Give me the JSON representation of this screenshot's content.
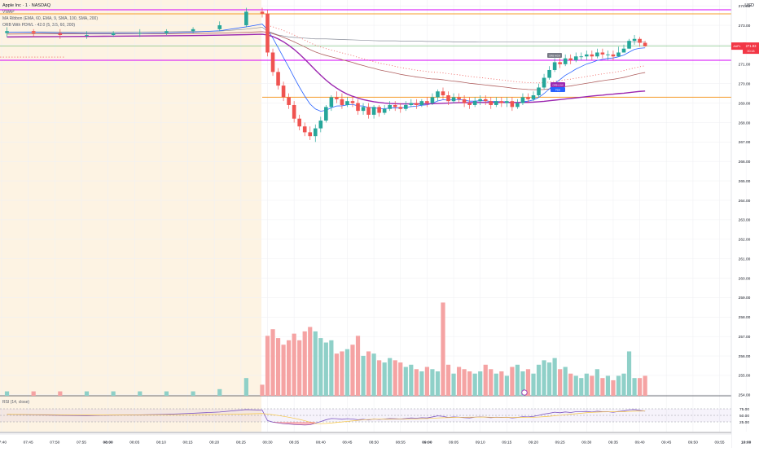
{
  "legend": {
    "symbol_line": "Apple Inc · 1 · NASDAQ",
    "vwap_line": "VWAP",
    "ribbon_line": "MA Ribbon (EMA, 60, EMA, 9, SMA, 100, SMA, 200)",
    "orb_line": "ORB With PDH/L · 42.0 (5, 3.5, 60, 200)"
  },
  "rsi": {
    "legend": "RSI (14, close)",
    "levels": [
      75,
      50,
      25
    ],
    "level_labels": [
      "75.00",
      "50.00",
      "25.00"
    ]
  },
  "axis": {
    "currency": "USD",
    "price_ticks": [
      {
        "v": 274,
        "t": "274.00"
      },
      {
        "v": 273,
        "t": "273.00"
      },
      {
        "v": 272,
        "t": "272.00"
      },
      {
        "v": 271,
        "t": "271.00"
      },
      {
        "v": 270,
        "t": "270.00"
      },
      {
        "v": 269,
        "t": "269.00"
      },
      {
        "v": 268,
        "t": "268.00"
      },
      {
        "v": 267,
        "t": "267.00"
      },
      {
        "v": 266,
        "t": "266.00"
      },
      {
        "v": 265,
        "t": "265.00"
      },
      {
        "v": 264,
        "t": "264.00"
      },
      {
        "v": 263,
        "t": "263.00"
      },
      {
        "v": 262,
        "t": "262.00"
      },
      {
        "v": 261,
        "t": "261.00"
      },
      {
        "v": 260,
        "t": "260.00"
      },
      {
        "v": 259,
        "t": "259.00"
      },
      {
        "v": 258,
        "t": "258.00"
      },
      {
        "v": 257,
        "t": "257.00"
      },
      {
        "v": 256,
        "t": "256.00"
      },
      {
        "v": 255,
        "t": "255.00"
      },
      {
        "v": 254,
        "t": "254.00"
      }
    ],
    "time_ticks": [
      "07:40",
      "07:45",
      "07:50",
      "07:55",
      "08:00",
      "08:05",
      "08:10",
      "08:15",
      "08:20",
      "08:25",
      "08:30",
      "08:35",
      "08:40",
      "08:45",
      "08:50",
      "08:55",
      "09:00",
      "09:05",
      "09:10",
      "09:15",
      "09:20",
      "09:25",
      "09:30",
      "09:35",
      "09:40",
      "09:45",
      "09:50",
      "09:55",
      "10:00",
      "10:05",
      "10:10",
      "10:15",
      "10:20",
      "10:25",
      "10:30"
    ],
    "bold_times": [
      "08:00",
      "09:00",
      "10:00"
    ],
    "price_badge": {
      "symbol": "AAPL",
      "price": "271.93",
      "countdown": "00:18",
      "color": "#f23645"
    }
  },
  "tags": [
    {
      "text": "ORB HIGH",
      "color": "#787b86"
    },
    {
      "text": "ORB LOW",
      "color": "#9c27b0"
    },
    {
      "text": "PDH",
      "color": "#2962ff"
    }
  ],
  "colors": {
    "up": "#26a69a",
    "down": "#ef5350",
    "vol_up": "#8fd0c8",
    "vol_down": "#f5a3a3",
    "premarket_bg": "#fdf3e3",
    "orange_line": "#f59c2b",
    "magenta_line": "#d500f9",
    "vwap": "#8a8e9a",
    "ema_fast": "#2962ff",
    "ema_slow": "#b06060",
    "sma": "#9c27b0"
  },
  "chart_data": {
    "type": "candlestick",
    "x_unit": "time",
    "y_unit": "USD",
    "candles": {
      "x": [
        "07:41",
        "07:46",
        "07:51",
        "07:56",
        "08:01",
        "08:06",
        "08:11",
        "08:16",
        "08:21",
        "08:26",
        "08:29",
        "08:30",
        "08:31",
        "08:32",
        "08:33",
        "08:34",
        "08:35",
        "08:36",
        "08:37",
        "08:38",
        "08:39",
        "08:40",
        "08:41",
        "08:42",
        "08:43",
        "08:44",
        "08:45",
        "08:46",
        "08:47",
        "08:48",
        "08:49",
        "08:50",
        "08:51",
        "08:52",
        "08:53",
        "08:54",
        "08:55",
        "08:56",
        "08:57",
        "08:58",
        "08:59",
        "09:00",
        "09:01",
        "09:02",
        "09:03",
        "09:04",
        "09:05",
        "09:06",
        "09:07",
        "09:08",
        "09:09",
        "09:10",
        "09:11",
        "09:12",
        "09:13",
        "09:14",
        "09:15",
        "09:16",
        "09:17",
        "09:18",
        "09:19",
        "09:20",
        "09:21",
        "09:22",
        "09:23",
        "09:24",
        "09:25",
        "09:26",
        "09:27",
        "09:28",
        "09:29",
        "09:30",
        "09:31",
        "09:32",
        "09:33",
        "09:34",
        "09:35",
        "09:36",
        "09:37",
        "09:38",
        "09:39",
        "09:40",
        "09:41"
      ],
      "open": [
        272.6,
        272.7,
        272.6,
        272.5,
        272.5,
        272.6,
        272.6,
        272.7,
        272.8,
        273.0,
        273.7,
        273.6,
        271.6,
        270.6,
        269.9,
        269.3,
        268.9,
        268.2,
        267.8,
        267.5,
        267.3,
        267.7,
        268.1,
        268.8,
        269.3,
        269.2,
        268.9,
        269.1,
        269.0,
        268.6,
        268.8,
        268.4,
        268.8,
        268.5,
        268.7,
        268.9,
        268.8,
        268.7,
        268.9,
        269.0,
        268.9,
        269.1,
        269.0,
        269.3,
        269.6,
        269.4,
        269.1,
        269.3,
        269.2,
        269.0,
        268.9,
        269.1,
        269.2,
        269.1,
        268.9,
        269.1,
        269.0,
        269.1,
        268.8,
        269.0,
        269.3,
        269.2,
        269.4,
        269.8,
        270.3,
        270.7,
        271.1,
        271.0,
        271.3,
        271.2,
        271.4,
        271.4,
        271.5,
        271.4,
        271.6,
        271.5,
        271.5,
        271.4,
        271.6,
        271.8,
        272.2,
        272.3,
        272.1
      ],
      "high": [
        272.9,
        272.8,
        272.8,
        272.7,
        272.7,
        272.8,
        272.8,
        272.9,
        273.2,
        273.9,
        273.9,
        273.8,
        271.8,
        270.8,
        270.1,
        269.5,
        269.1,
        268.4,
        268.0,
        267.8,
        267.9,
        268.3,
        268.9,
        269.4,
        269.6,
        269.5,
        269.3,
        269.3,
        269.2,
        269.0,
        269.0,
        268.9,
        268.9,
        268.9,
        269.1,
        269.1,
        269.0,
        269.1,
        269.2,
        269.2,
        269.2,
        269.3,
        269.5,
        269.7,
        269.8,
        269.6,
        269.5,
        269.5,
        269.4,
        269.3,
        269.3,
        269.4,
        269.4,
        269.3,
        269.3,
        269.3,
        269.3,
        269.3,
        269.2,
        269.5,
        269.5,
        269.6,
        270.0,
        270.5,
        270.9,
        271.3,
        271.3,
        271.5,
        271.5,
        271.6,
        271.6,
        271.7,
        271.7,
        271.8,
        271.8,
        271.7,
        271.7,
        271.9,
        272.0,
        272.3,
        272.5,
        272.4,
        272.2
      ],
      "low": [
        272.4,
        272.4,
        272.3,
        272.3,
        272.4,
        272.4,
        272.5,
        272.6,
        272.7,
        272.9,
        273.4,
        271.4,
        270.4,
        269.7,
        269.1,
        268.7,
        268.0,
        267.6,
        267.3,
        267.1,
        267.0,
        267.5,
        268.0,
        268.6,
        269.0,
        268.7,
        268.8,
        268.8,
        268.4,
        268.4,
        268.2,
        268.2,
        268.3,
        268.4,
        268.6,
        268.6,
        268.5,
        268.6,
        268.8,
        268.7,
        268.8,
        268.8,
        268.9,
        269.1,
        269.2,
        268.9,
        269.0,
        269.0,
        268.8,
        268.7,
        268.8,
        268.9,
        268.9,
        268.7,
        268.8,
        268.8,
        268.8,
        268.6,
        268.7,
        268.9,
        269.0,
        269.1,
        269.3,
        269.7,
        270.2,
        270.6,
        270.8,
        270.9,
        271.0,
        271.1,
        271.2,
        271.2,
        271.2,
        271.3,
        271.3,
        271.2,
        271.2,
        271.4,
        271.6,
        271.8,
        272.0,
        271.9,
        271.9
      ],
      "close": [
        272.7,
        272.6,
        272.5,
        272.5,
        272.6,
        272.6,
        272.7,
        272.8,
        273.0,
        273.7,
        273.6,
        271.6,
        270.6,
        269.9,
        269.3,
        268.9,
        268.2,
        267.8,
        267.5,
        267.3,
        267.7,
        268.1,
        268.8,
        269.3,
        269.2,
        268.9,
        269.1,
        269.0,
        268.6,
        268.8,
        268.4,
        268.8,
        268.5,
        268.7,
        268.9,
        268.8,
        268.7,
        268.9,
        269.0,
        268.9,
        269.1,
        269.0,
        269.3,
        269.6,
        269.4,
        269.1,
        269.3,
        269.2,
        269.0,
        268.9,
        269.1,
        269.2,
        269.1,
        268.9,
        269.1,
        269.0,
        269.1,
        268.8,
        269.0,
        269.3,
        269.2,
        269.4,
        269.8,
        270.3,
        270.7,
        271.1,
        271.0,
        271.3,
        271.2,
        271.4,
        271.4,
        271.5,
        271.4,
        271.6,
        271.5,
        271.5,
        271.4,
        271.6,
        271.8,
        272.2,
        272.3,
        272.1,
        271.93
      ]
    },
    "volume": [
      0.2,
      0.2,
      0.2,
      0.2,
      0.2,
      0.2,
      0.2,
      0.2,
      0.3,
      0.8,
      0.5,
      2.7,
      3.0,
      2.6,
      2.3,
      2.5,
      2.8,
      2.5,
      2.9,
      3.1,
      2.9,
      2.6,
      2.4,
      2.5,
      1.9,
      2.0,
      2.1,
      2.3,
      2.7,
      1.8,
      2.0,
      1.9,
      1.6,
      1.5,
      1.7,
      1.6,
      1.5,
      1.3,
      1.4,
      1.2,
      1.1,
      1.3,
      1.2,
      1.1,
      4.2,
      1.4,
      1.0,
      1.3,
      1.2,
      1.1,
      1.0,
      1.1,
      1.4,
      1.2,
      1.0,
      1.1,
      0.9,
      1.3,
      1.4,
      1.1,
      1.2,
      1.0,
      1.4,
      1.6,
      1.5,
      1.7,
      1.2,
      1.3,
      1.0,
      0.9,
      0.8,
      1.0,
      0.9,
      1.2,
      0.8,
      0.9,
      0.7,
      0.9,
      1.0,
      2.0,
      0.8,
      0.8,
      0.9
    ],
    "rsi": [
      54,
      52,
      50,
      49,
      51,
      52,
      54,
      58,
      63,
      72,
      70,
      30,
      24,
      21,
      18,
      17,
      15,
      14,
      13,
      14,
      20,
      26,
      33,
      38,
      37,
      35,
      37,
      36,
      33,
      35,
      32,
      36,
      34,
      36,
      38,
      37,
      36,
      38,
      40,
      39,
      41,
      40,
      44,
      48,
      46,
      42,
      44,
      43,
      41,
      40,
      43,
      44,
      43,
      41,
      43,
      42,
      43,
      40,
      42,
      45,
      44,
      46,
      50,
      55,
      58,
      62,
      60,
      63,
      61,
      64,
      64,
      65,
      63,
      66,
      64,
      64,
      62,
      65,
      67,
      71,
      72,
      69,
      66
    ],
    "vwap": [
      272.65,
      272.66,
      272.66,
      272.66,
      272.66,
      272.66,
      272.67,
      272.68,
      272.7,
      272.8,
      272.9,
      272.7,
      272.6,
      272.5,
      272.45,
      272.4,
      272.38,
      272.36,
      272.34,
      272.32,
      272.3,
      272.3,
      272.3,
      272.29,
      272.28,
      272.27,
      272.26,
      272.25,
      272.24,
      272.23,
      272.22,
      272.21,
      272.2,
      272.2,
      272.2,
      272.2,
      272.19,
      272.19,
      272.18,
      272.18,
      272.18,
      272.17,
      272.17,
      272.17,
      272.16,
      272.16,
      272.15,
      272.15,
      272.15,
      272.15,
      272.15,
      272.14,
      272.14,
      272.14,
      272.14,
      272.14,
      272.14,
      272.14,
      272.14,
      272.14,
      272.14,
      272.14,
      272.14,
      272.14,
      272.14,
      272.14,
      272.14,
      272.14,
      272.14,
      272.14,
      272.14,
      272.14,
      272.14,
      272.14,
      272.14,
      272.14,
      272.14,
      272.14,
      272.14,
      272.14,
      272.14,
      272.14,
      272.14
    ],
    "ema_fast": [
      272.65,
      272.64,
      272.61,
      272.59,
      272.59,
      272.59,
      272.61,
      272.65,
      272.72,
      272.92,
      273.06,
      272.77,
      272.34,
      271.85,
      271.34,
      270.85,
      270.32,
      269.82,
      269.36,
      268.95,
      268.7,
      268.58,
      268.63,
      268.76,
      268.85,
      268.86,
      268.91,
      268.93,
      268.86,
      268.85,
      268.76,
      268.77,
      268.71,
      268.71,
      268.75,
      268.76,
      268.75,
      268.78,
      268.82,
      268.84,
      268.89,
      268.91,
      268.99,
      269.11,
      269.17,
      269.15,
      269.18,
      269.18,
      269.15,
      269.1,
      269.1,
      269.12,
      269.12,
      269.08,
      269.08,
      269.07,
      269.07,
      269.02,
      269.02,
      269.07,
      269.1,
      269.16,
      269.29,
      269.49,
      269.73,
      270.01,
      270.21,
      270.43,
      270.58,
      270.75,
      270.88,
      271.01,
      271.09,
      271.19,
      271.25,
      271.3,
      271.32,
      271.38,
      271.47,
      271.62,
      271.76,
      271.82,
      271.84
    ],
    "ema_slow": [
      272.55,
      272.56,
      272.56,
      272.56,
      272.56,
      272.57,
      272.57,
      272.58,
      272.6,
      272.64,
      272.67,
      272.64,
      272.57,
      272.48,
      272.38,
      272.27,
      272.15,
      272.02,
      271.89,
      271.75,
      271.63,
      271.53,
      271.45,
      271.38,
      271.31,
      271.23,
      271.16,
      271.09,
      271.0,
      270.93,
      270.85,
      270.79,
      270.71,
      270.65,
      270.6,
      270.54,
      270.48,
      270.43,
      270.39,
      270.34,
      270.31,
      270.27,
      270.24,
      270.23,
      270.2,
      270.16,
      270.13,
      270.1,
      270.06,
      270.02,
      269.99,
      269.96,
      269.93,
      269.9,
      269.87,
      269.84,
      269.81,
      269.77,
      269.74,
      269.72,
      269.7,
      269.69,
      269.69,
      269.7,
      269.73,
      269.77,
      269.8,
      269.85,
      269.88,
      269.93,
      269.97,
      270.02,
      270.06,
      270.11,
      270.15,
      270.19,
      270.22,
      270.27,
      270.32,
      270.39,
      270.46,
      270.52,
      270.57
    ],
    "sma": [
      272.4,
      272.41,
      272.42,
      272.43,
      272.44,
      272.45,
      272.46,
      272.47,
      272.49,
      272.52,
      272.54,
      272.5,
      272.42,
      272.3,
      272.15,
      271.97,
      271.76,
      271.52,
      271.26,
      270.98,
      270.7,
      270.43,
      270.18,
      269.96,
      269.77,
      269.6,
      269.46,
      269.35,
      269.26,
      269.18,
      269.12,
      269.07,
      269.03,
      269.0,
      268.98,
      268.97,
      268.96,
      268.96,
      268.96,
      268.96,
      268.96,
      268.96,
      268.97,
      268.98,
      268.99,
      269.0,
      269.01,
      269.02,
      269.02,
      269.02,
      269.03,
      269.03,
      269.03,
      269.03,
      269.03,
      269.03,
      269.03,
      269.03,
      269.03,
      269.03,
      269.04,
      269.05,
      269.07,
      269.09,
      269.12,
      269.15,
      269.18,
      269.21,
      269.24,
      269.27,
      269.3,
      269.33,
      269.36,
      269.39,
      269.41,
      269.44,
      269.46,
      269.49,
      269.51,
      269.54,
      269.57,
      269.6,
      269.62
    ],
    "levels": {
      "pdh": 273.8,
      "pdl": 271.2,
      "orb_high": 273.6,
      "orb_low": 269.3,
      "prev_close": 271.93
    }
  }
}
